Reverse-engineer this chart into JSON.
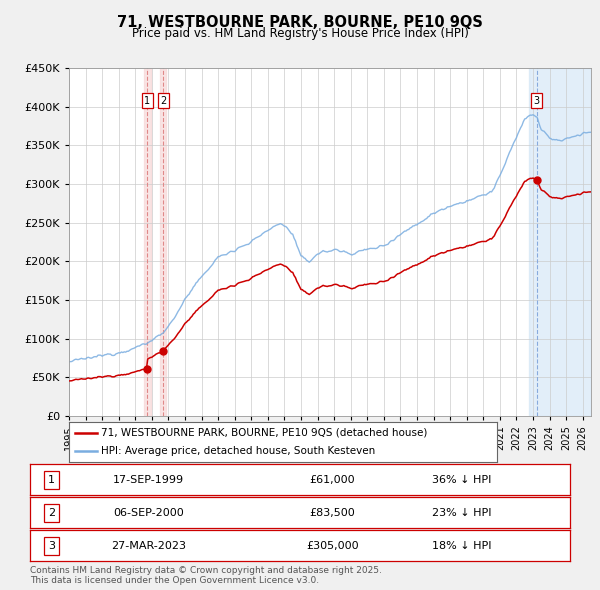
{
  "title": "71, WESTBOURNE PARK, BOURNE, PE10 9QS",
  "subtitle": "Price paid vs. HM Land Registry's House Price Index (HPI)",
  "ylim": [
    0,
    450000
  ],
  "yticks": [
    0,
    50000,
    100000,
    150000,
    200000,
    250000,
    300000,
    350000,
    400000,
    450000
  ],
  "ytick_labels": [
    "£0",
    "£50K",
    "£100K",
    "£150K",
    "£200K",
    "£250K",
    "£300K",
    "£350K",
    "£400K",
    "£450K"
  ],
  "xlim_start": 1995.0,
  "xlim_end": 2026.5,
  "sale_dates": [
    1999.72,
    2000.68,
    2023.23
  ],
  "sale_prices": [
    61000,
    83500,
    305000
  ],
  "sale_labels": [
    "1",
    "2",
    "3"
  ],
  "legend_red": "71, WESTBOURNE PARK, BOURNE, PE10 9QS (detached house)",
  "legend_blue": "HPI: Average price, detached house, South Kesteven",
  "table_rows": [
    {
      "num": "1",
      "date": "17-SEP-1999",
      "price": "£61,000",
      "hpi": "36% ↓ HPI"
    },
    {
      "num": "2",
      "date": "06-SEP-2000",
      "price": "£83,500",
      "hpi": "23% ↓ HPI"
    },
    {
      "num": "3",
      "date": "27-MAR-2023",
      "price": "£305,000",
      "hpi": "18% ↓ HPI"
    }
  ],
  "footer": "Contains HM Land Registry data © Crown copyright and database right 2025.\nThis data is licensed under the Open Government Licence v3.0.",
  "red_color": "#cc0000",
  "blue_color": "#7aade0",
  "shade_pink": "#f5cccc",
  "shade_blue": "#d0e4f5",
  "vline_pink": "#e08888",
  "vline_blue": "#88aadd",
  "background_color": "#f0f0f0",
  "plot_bg_color": "#ffffff",
  "grid_color": "#cccccc"
}
